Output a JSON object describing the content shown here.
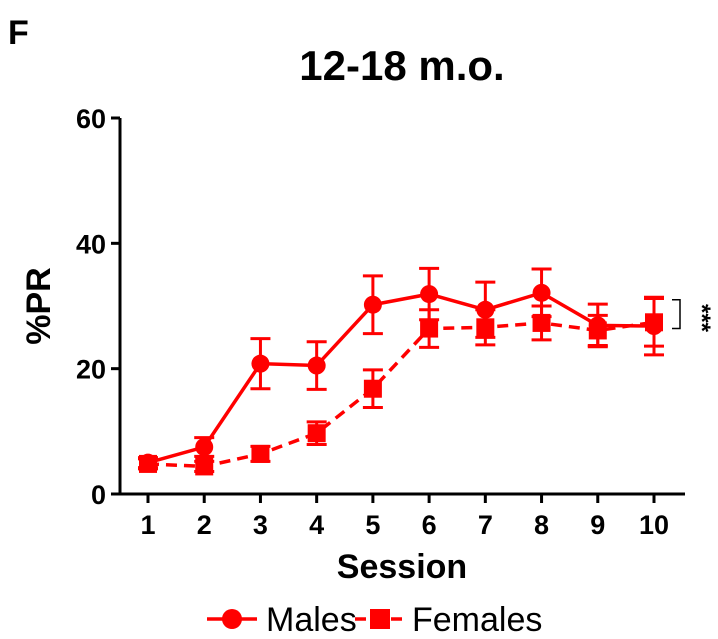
{
  "panel_letter": "F",
  "chart_data": {
    "type": "line",
    "title": "12-18 m.o.",
    "xlabel": "Session",
    "ylabel": "%PR",
    "x": [
      1,
      2,
      3,
      4,
      5,
      6,
      7,
      8,
      9,
      10
    ],
    "xticks": [
      "1",
      "2",
      "3",
      "4",
      "5",
      "6",
      "7",
      "8",
      "9",
      "10"
    ],
    "ylim": [
      0,
      60
    ],
    "yticks": [
      "0",
      "20",
      "40",
      "60"
    ],
    "grid": false,
    "legend_position": "bottom",
    "series": [
      {
        "name": "Males",
        "marker": "circle",
        "line_style": "solid",
        "color": "#ff0000",
        "values": [
          5,
          7.5,
          20.8,
          20.5,
          30.2,
          31.9,
          29.4,
          32.1,
          26.9,
          26.8
        ],
        "errors": [
          0.8,
          1.5,
          4,
          3.8,
          4.6,
          4.1,
          4.4,
          3.8,
          3.4,
          4.6
        ]
      },
      {
        "name": "Females",
        "marker": "square",
        "line_style": "dashed",
        "color": "#ff0000",
        "values": [
          4.8,
          4.4,
          6.4,
          9.7,
          16.8,
          26.4,
          26.6,
          27.3,
          26.1,
          27.4
        ],
        "errors": [
          0.8,
          0.8,
          1.2,
          1.8,
          3,
          3,
          2.8,
          2.7,
          2.4,
          3.8
        ]
      }
    ],
    "annotations": [
      {
        "text": "***",
        "between_series": [
          "Males",
          "Females"
        ],
        "at_x": 10
      }
    ]
  }
}
